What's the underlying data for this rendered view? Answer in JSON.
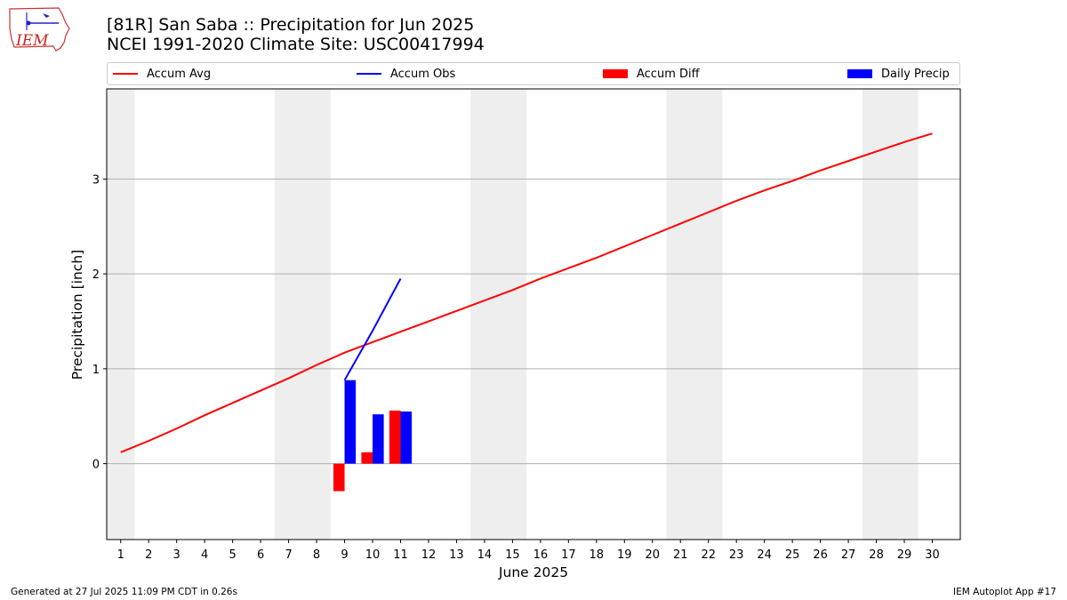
{
  "logo": {
    "text": "IEM"
  },
  "title": {
    "line1": "[81R] San Saba :: Precipitation for Jun 2025",
    "line2": "NCEI 1991-2020 Climate Site: USC00417994"
  },
  "legend": {
    "accum_avg": "Accum Avg",
    "accum_obs": "Accum Obs",
    "accum_diff": "Accum Diff",
    "daily_precip": "Daily Precip"
  },
  "footer": {
    "generated": "Generated at 27 Jul 2025 11:09 PM CDT in 0.26s",
    "app": "IEM Autoplot App #17"
  },
  "chart_data": {
    "type": "bar",
    "xlabel": "June 2025",
    "ylabel": "Precipitation [inch]",
    "xlim": [
      0.5,
      31.0
    ],
    "ylim": [
      -0.8,
      3.95
    ],
    "x_ticks": [
      1,
      2,
      3,
      4,
      5,
      6,
      7,
      8,
      9,
      10,
      11,
      12,
      13,
      14,
      15,
      16,
      17,
      18,
      19,
      20,
      21,
      22,
      23,
      24,
      25,
      26,
      27,
      28,
      29,
      30
    ],
    "y_ticks": [
      0,
      1,
      2,
      3
    ],
    "grid": "horizontal",
    "weekend_shading": [
      [
        0.5,
        1.5
      ],
      [
        6.5,
        8.5
      ],
      [
        13.5,
        15.5
      ],
      [
        20.5,
        22.5
      ],
      [
        27.5,
        29.5
      ]
    ],
    "colors": {
      "accum_avg": "#ff0000",
      "accum_obs": "#0000ff",
      "accum_diff": "#ff0000",
      "daily_precip": "#0000ff",
      "weekend": "#eeeeee",
      "grid": "#b0b0b0"
    },
    "accum_avg": {
      "days": [
        1,
        2,
        3,
        4,
        5,
        6,
        7,
        8,
        9,
        10,
        11,
        12,
        13,
        14,
        15,
        16,
        17,
        18,
        19,
        20,
        21,
        22,
        23,
        24,
        25,
        26,
        27,
        28,
        29,
        30
      ],
      "values": [
        0.12,
        0.24,
        0.37,
        0.51,
        0.64,
        0.77,
        0.9,
        1.04,
        1.17,
        1.28,
        1.39,
        1.5,
        1.61,
        1.72,
        1.83,
        1.95,
        2.06,
        2.17,
        2.29,
        2.41,
        2.53,
        2.65,
        2.77,
        2.88,
        2.98,
        3.09,
        3.19,
        3.29,
        3.39,
        3.48
      ]
    },
    "accum_obs": {
      "days": [
        9,
        10,
        11
      ],
      "values": [
        0.88,
        1.4,
        1.95
      ]
    },
    "accum_diff": {
      "days": [
        9,
        10,
        11
      ],
      "values": [
        -0.29,
        0.12,
        0.56
      ]
    },
    "daily_precip": {
      "days": [
        9,
        10,
        11
      ],
      "values": [
        0.88,
        0.52,
        0.55
      ]
    }
  }
}
